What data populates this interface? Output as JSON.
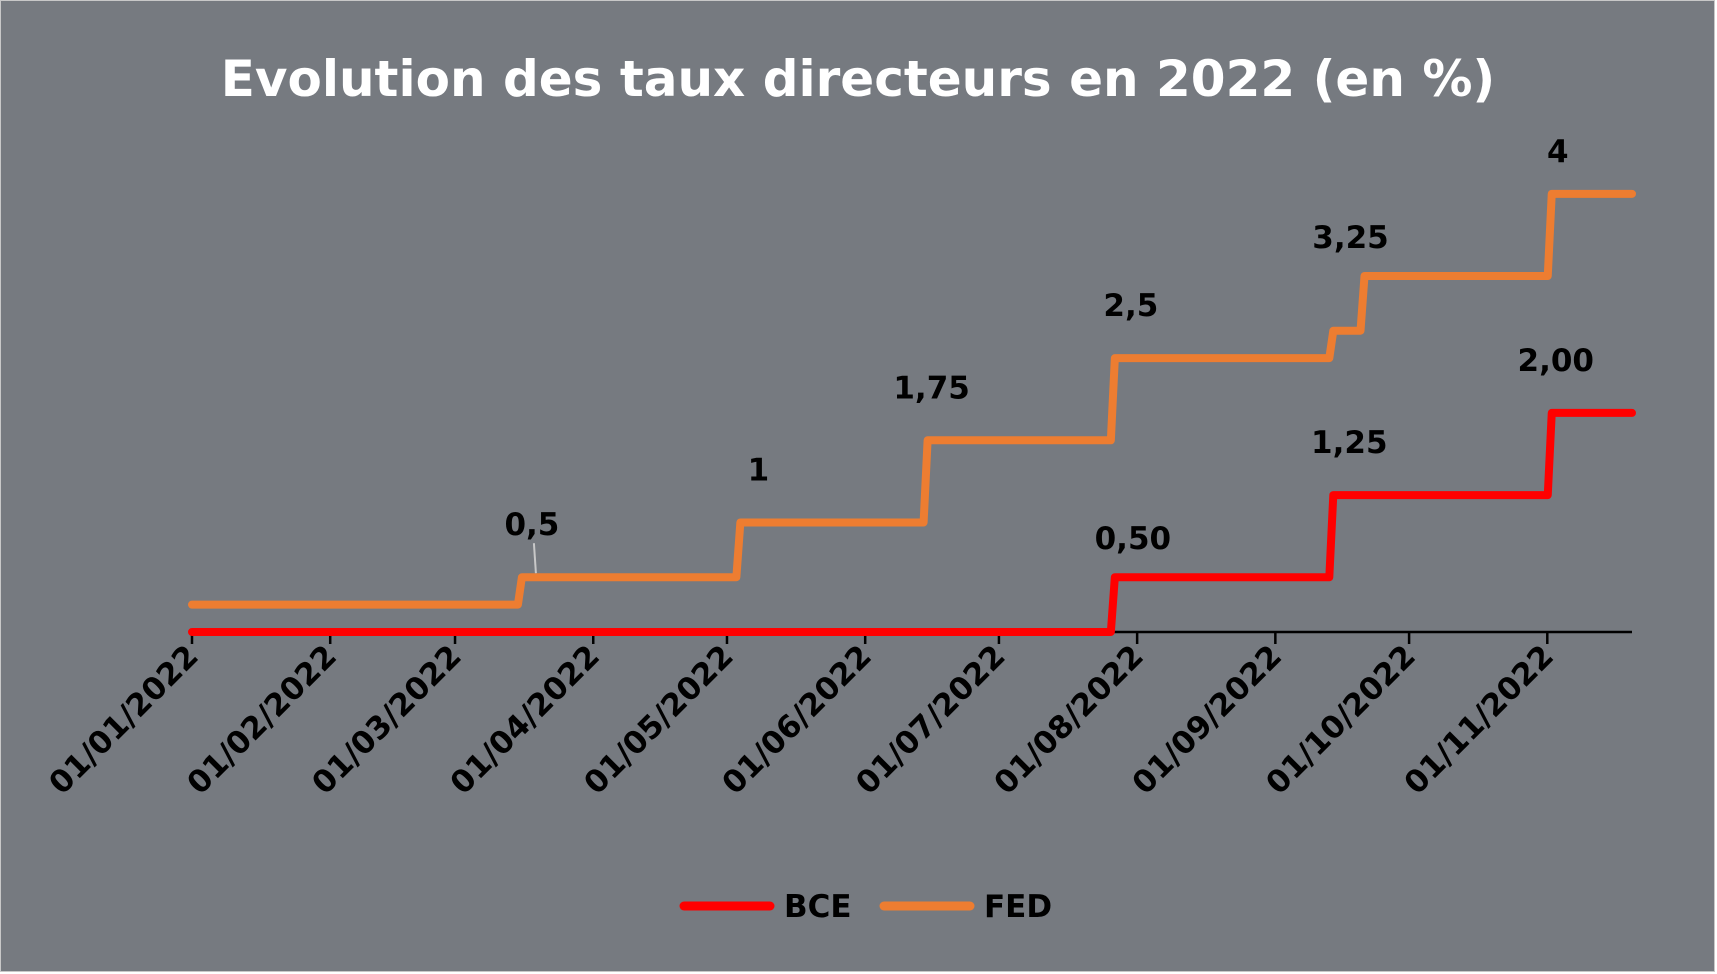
{
  "chart_data": {
    "type": "line",
    "title": "Evolution des taux directeurs en 2022 (en %)",
    "xlabel": "",
    "ylabel": "",
    "x_ticks": [
      "01/01/2022",
      "01/02/2022",
      "01/03/2022",
      "01/04/2022",
      "01/05/2022",
      "01/06/2022",
      "01/07/2022",
      "01/08/2022",
      "01/09/2022",
      "01/10/2022",
      "01/11/2022"
    ],
    "x_range": [
      "2022-01-01",
      "2022-11-20"
    ],
    "ylim": [
      0,
      4.4
    ],
    "grid": false,
    "legend_position": "bottom",
    "series": [
      {
        "name": "BCE",
        "color": "#ff0000",
        "points": [
          {
            "date": "2022-01-01",
            "value": 0
          },
          {
            "date": "2022-07-27",
            "value": 0.5
          },
          {
            "date": "2022-09-14",
            "value": 1.25
          },
          {
            "date": "2022-11-02",
            "value": 2.0
          },
          {
            "date": "2022-11-20",
            "value": 2.0
          }
        ],
        "labels": [
          {
            "date": "2022-07-27",
            "value": 0.5,
            "text": "0,50"
          },
          {
            "date": "2022-09-14",
            "value": 1.25,
            "text": "1,25"
          },
          {
            "date": "2022-11-02",
            "value": 2.0,
            "text": "2,00"
          }
        ]
      },
      {
        "name": "FED",
        "color": "#ed7d31",
        "points": [
          {
            "date": "2022-01-01",
            "value": 0.25
          },
          {
            "date": "2022-03-16",
            "value": 0.5
          },
          {
            "date": "2022-05-04",
            "value": 1.0
          },
          {
            "date": "2022-06-15",
            "value": 1.75
          },
          {
            "date": "2022-07-27",
            "value": 2.5
          },
          {
            "date": "2022-09-14",
            "value": 2.75
          },
          {
            "date": "2022-09-21",
            "value": 3.25
          },
          {
            "date": "2022-11-02",
            "value": 4.0
          },
          {
            "date": "2022-11-20",
            "value": 4.0
          }
        ],
        "labels": [
          {
            "date": "2022-03-16",
            "value": 0.5,
            "text": "0,5"
          },
          {
            "date": "2022-05-04",
            "value": 1.0,
            "text": "1"
          },
          {
            "date": "2022-06-15",
            "value": 1.75,
            "text": "1,75"
          },
          {
            "date": "2022-07-27",
            "value": 2.5,
            "text": "2,5"
          },
          {
            "date": "2022-09-21",
            "value": 3.25,
            "text": "3,25"
          },
          {
            "date": "2022-11-02",
            "value": 4.0,
            "text": "4"
          }
        ]
      }
    ]
  }
}
